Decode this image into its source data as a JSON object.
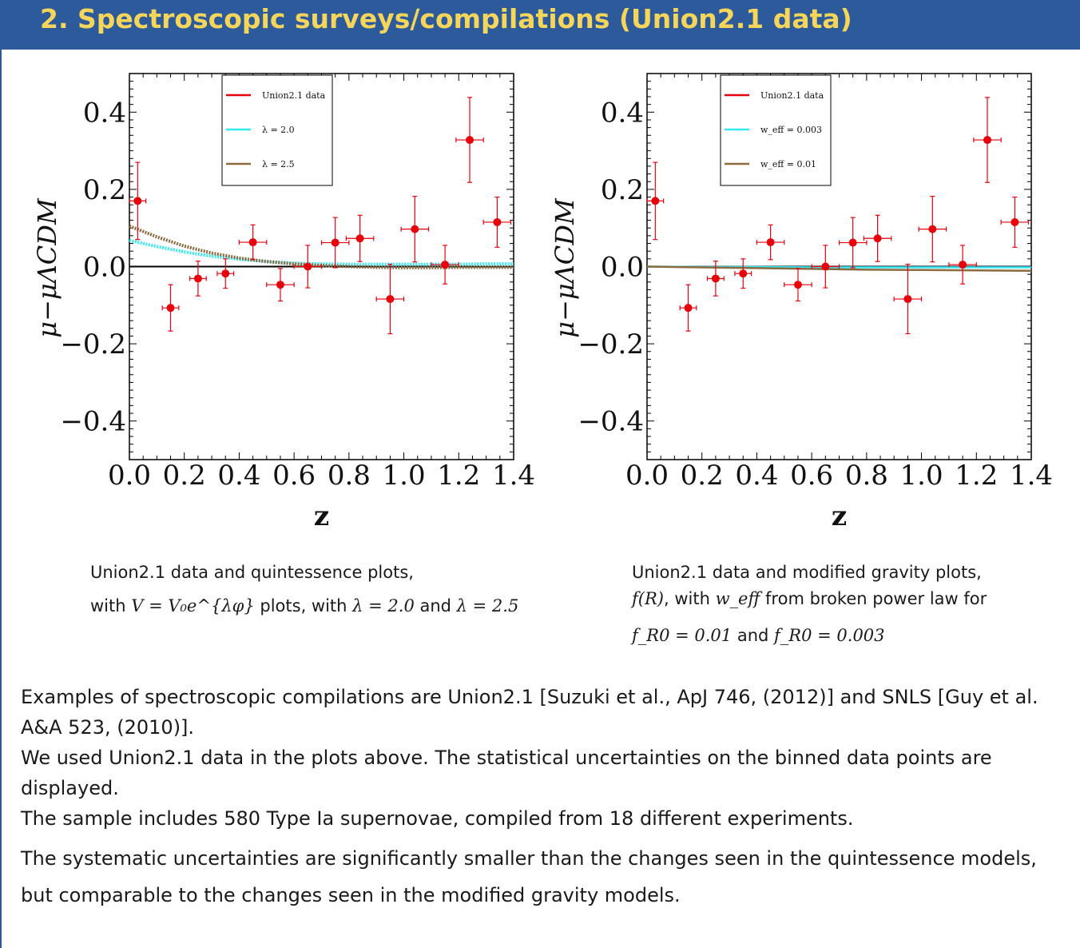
{
  "header": {
    "title": "2.  Spectroscopic surveys/compilations (Union2.1 data)"
  },
  "colors": {
    "header_bg": "#2c5a9b",
    "header_text": "#f6d65a",
    "data": "#e8000b",
    "series_a": "#37e9f5",
    "series_b": "#8b6a3e"
  },
  "chart_data": [
    {
      "type": "scatter",
      "xlabel": "z",
      "ylabel": "μ−μΛCDM",
      "xlim": [
        0.0,
        1.4
      ],
      "ylim": [
        -0.5,
        0.5
      ],
      "xticks": [
        "0.0",
        "0.2",
        "0.4",
        "0.6",
        "0.8",
        "1.0",
        "1.2",
        "1.4"
      ],
      "yticks": [
        "0.4",
        "0.2",
        "0.0",
        "−0.2",
        "−0.4"
      ],
      "legend_position": "top-center",
      "legend": [
        "Union2.1 data",
        "λ = 2.0",
        "λ = 2.5"
      ],
      "data_points": [
        {
          "x": 0.03,
          "y": 0.17,
          "xerr": 0.03,
          "yerr": 0.1
        },
        {
          "x": 0.15,
          "y": -0.107,
          "xerr": 0.03,
          "yerr": 0.06
        },
        {
          "x": 0.25,
          "y": -0.031,
          "xerr": 0.03,
          "yerr": 0.045
        },
        {
          "x": 0.35,
          "y": -0.018,
          "xerr": 0.03,
          "yerr": 0.038
        },
        {
          "x": 0.45,
          "y": 0.063,
          "xerr": 0.05,
          "yerr": 0.045
        },
        {
          "x": 0.55,
          "y": -0.047,
          "xerr": 0.05,
          "yerr": 0.042
        },
        {
          "x": 0.65,
          "y": 0.0,
          "xerr": 0.05,
          "yerr": 0.055
        },
        {
          "x": 0.75,
          "y": 0.062,
          "xerr": 0.05,
          "yerr": 0.065
        },
        {
          "x": 0.84,
          "y": 0.073,
          "xerr": 0.05,
          "yerr": 0.06
        },
        {
          "x": 0.95,
          "y": -0.084,
          "xerr": 0.05,
          "yerr": 0.09
        },
        {
          "x": 1.04,
          "y": 0.097,
          "xerr": 0.05,
          "yerr": 0.085
        },
        {
          "x": 1.15,
          "y": 0.005,
          "xerr": 0.05,
          "yerr": 0.05
        },
        {
          "x": 1.24,
          "y": 0.328,
          "xerr": 0.05,
          "yerr": 0.11
        },
        {
          "x": 1.34,
          "y": 0.115,
          "xerr": 0.05,
          "yerr": 0.065
        }
      ],
      "series": [
        {
          "name": "λ = 2.0",
          "x": [
            0.0,
            0.1,
            0.2,
            0.3,
            0.4,
            0.5,
            0.6,
            0.7,
            0.8,
            0.9,
            1.0,
            1.1,
            1.2,
            1.3,
            1.4
          ],
          "values": [
            0.068,
            0.052,
            0.038,
            0.027,
            0.019,
            0.013,
            0.009,
            0.007,
            0.006,
            0.006,
            0.006,
            0.006,
            0.006,
            0.007,
            0.007
          ]
        },
        {
          "name": "λ = 2.5",
          "x": [
            0.0,
            0.1,
            0.2,
            0.3,
            0.4,
            0.5,
            0.6,
            0.7,
            0.8,
            0.9,
            1.0,
            1.1,
            1.2,
            1.3,
            1.4
          ],
          "values": [
            0.105,
            0.077,
            0.053,
            0.035,
            0.022,
            0.013,
            0.007,
            0.003,
            0.0,
            -0.002,
            -0.003,
            -0.003,
            -0.002,
            -0.002,
            -0.002
          ]
        }
      ]
    },
    {
      "type": "scatter",
      "xlabel": "z",
      "ylabel": "μ−μΛCDM",
      "xlim": [
        0.0,
        1.4
      ],
      "ylim": [
        -0.5,
        0.5
      ],
      "xticks": [
        "0.0",
        "0.2",
        "0.4",
        "0.6",
        "0.8",
        "1.0",
        "1.2",
        "1.4"
      ],
      "yticks": [
        "0.4",
        "0.2",
        "0.0",
        "−0.2",
        "−0.4"
      ],
      "legend_position": "top-center",
      "legend": [
        "Union2.1 data",
        "w_eff = 0.003",
        "w_eff = 0.01"
      ],
      "data_points": [
        {
          "x": 0.03,
          "y": 0.17,
          "xerr": 0.03,
          "yerr": 0.1
        },
        {
          "x": 0.15,
          "y": -0.107,
          "xerr": 0.03,
          "yerr": 0.06
        },
        {
          "x": 0.25,
          "y": -0.031,
          "xerr": 0.03,
          "yerr": 0.045
        },
        {
          "x": 0.35,
          "y": -0.018,
          "xerr": 0.03,
          "yerr": 0.038
        },
        {
          "x": 0.45,
          "y": 0.063,
          "xerr": 0.05,
          "yerr": 0.045
        },
        {
          "x": 0.55,
          "y": -0.047,
          "xerr": 0.05,
          "yerr": 0.042
        },
        {
          "x": 0.65,
          "y": 0.0,
          "xerr": 0.05,
          "yerr": 0.055
        },
        {
          "x": 0.75,
          "y": 0.062,
          "xerr": 0.05,
          "yerr": 0.065
        },
        {
          "x": 0.84,
          "y": 0.073,
          "xerr": 0.05,
          "yerr": 0.06
        },
        {
          "x": 0.95,
          "y": -0.084,
          "xerr": 0.05,
          "yerr": 0.09
        },
        {
          "x": 1.04,
          "y": 0.097,
          "xerr": 0.05,
          "yerr": 0.085
        },
        {
          "x": 1.15,
          "y": 0.005,
          "xerr": 0.05,
          "yerr": 0.05
        },
        {
          "x": 1.24,
          "y": 0.328,
          "xerr": 0.05,
          "yerr": 0.11
        },
        {
          "x": 1.34,
          "y": 0.115,
          "xerr": 0.05,
          "yerr": 0.065
        }
      ],
      "series": [
        {
          "name": "w_eff = 0.003",
          "x": [
            0.0,
            0.2,
            0.4,
            0.6,
            0.8,
            1.0,
            1.2,
            1.4
          ],
          "values": [
            0.0,
            -0.001,
            -0.001,
            -0.002,
            -0.002,
            -0.002,
            -0.002,
            -0.002
          ]
        },
        {
          "name": "w_eff = 0.01",
          "x": [
            0.0,
            0.2,
            0.4,
            0.6,
            0.8,
            1.0,
            1.2,
            1.4
          ],
          "values": [
            0.0,
            -0.002,
            -0.004,
            -0.006,
            -0.008,
            -0.009,
            -0.01,
            -0.011
          ]
        }
      ]
    }
  ],
  "captions": {
    "left": {
      "line1": "Union2.1 data and quintessence plots,",
      "line2_a": "with ",
      "line2_math": "V = V₀e^{λφ}",
      "line2_b": " plots, with ",
      "line2_math2": "λ = 2.0",
      "line2_c": " and ",
      "line2_math3": "λ = 2.5"
    },
    "right": {
      "line1": "Union2.1 data and modified gravity plots,",
      "line2_math": "f(R)",
      "line2_a": ", with ",
      "line2_math2": "w_eff",
      "line2_b": " from broken power law for",
      "line3_math": "f_R0 = 0.01",
      "line3_a": " and ",
      "line3_math2": "f_R0 = 0.003"
    }
  },
  "body": {
    "p1": "Examples of spectroscopic compilations are Union2.1 [Suzuki et al., ApJ 746, (2012)] and SNLS [Guy et al. A&A 523, (2010)].",
    "p2": "We used Union2.1 data in the plots above.  The statistical uncertainties on the binned data points are displayed.",
    "p3": "The sample includes 580 Type Ia supernovae, compiled from 18 different experiments.",
    "p4": "The systematic uncertainties are significantly smaller than the changes seen in the quintessence models, but comparable to the changes seen in the modified gravity models."
  }
}
